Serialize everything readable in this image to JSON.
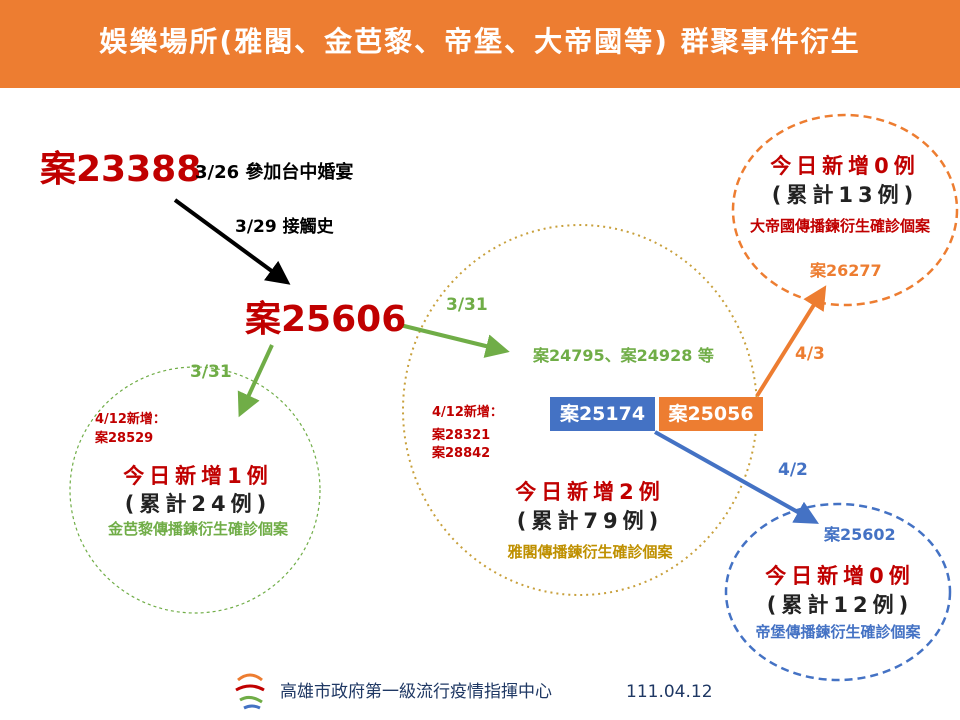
{
  "header": {
    "title": "娛樂場所(雅閣、金芭黎、帝堡、大帝國等) 群聚事件衍生"
  },
  "origin": {
    "case": "案23388",
    "note": "3/26 參加台中婚宴"
  },
  "hub": {
    "case": "案25606"
  },
  "links": [
    {
      "label": "3/29 接觸史"
    },
    {
      "label": "3/31"
    },
    {
      "label": "3/31"
    },
    {
      "label": "4/3"
    },
    {
      "label": "4/2"
    }
  ],
  "clusters": [
    {
      "new_label": "4/12新增：",
      "new_cases": [
        "案28529"
      ],
      "today": "今日新增1例",
      "total": "(累計24例)",
      "desc": "金芭黎傳播鍊衍生確診個案"
    },
    {
      "contacts": "案24795、案24928 等",
      "boxes": [
        "案25174",
        "案25056"
      ],
      "new_label": "4/12新增：",
      "new_cases": [
        "案28321",
        "案28842"
      ],
      "today": "今日新增2例",
      "total": "(累計79例)",
      "desc": "雅閣傳播鍊衍生確診個案"
    },
    {
      "today": "今日新增0例",
      "total": "(累計13例)",
      "desc": "大帝國傳播鍊衍生確診個案",
      "case": "案26277"
    },
    {
      "case": "案25602",
      "today": "今日新增0例",
      "total": "(累計12例)",
      "desc": "帝堡傳播鍊衍生確診個案"
    }
  ],
  "footer": {
    "org": "高雄市政府第一級流行疫情指揮中心",
    "date": "111.04.12"
  }
}
